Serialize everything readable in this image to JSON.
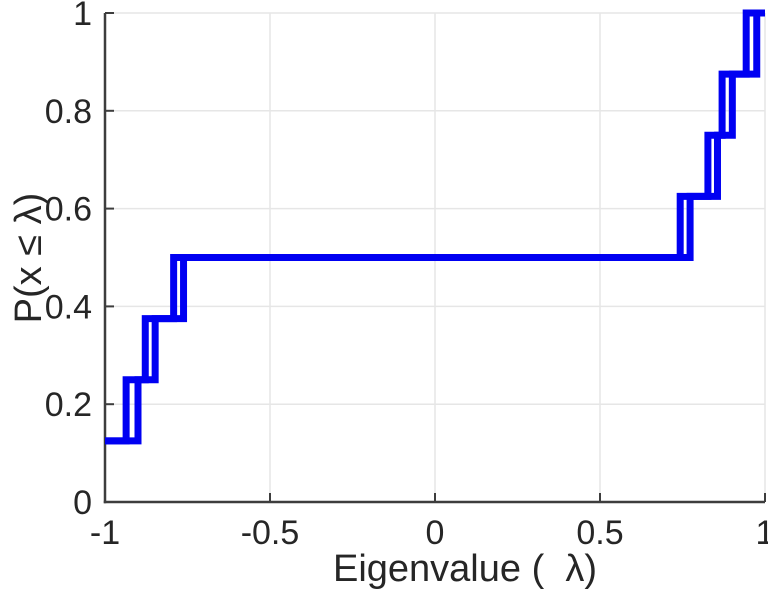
{
  "figure": {
    "background_color": "#ffffff"
  },
  "chart_data": {
    "type": "line",
    "subtype": "empirical-cdf-step-plot",
    "title": "",
    "xlabel": "Eigenvalue (  λ)",
    "ylabel": "P(x ≤ λ)",
    "xlim": [
      -1,
      1
    ],
    "ylim": [
      0,
      1
    ],
    "x_ticks": [
      -1,
      -0.5,
      0,
      0.5,
      1
    ],
    "x_tick_labels": [
      "-1",
      "-0.5",
      "0",
      "0.5",
      "1"
    ],
    "y_ticks": [
      0,
      0.2,
      0.4,
      0.6,
      0.8,
      1
    ],
    "y_tick_labels": [
      "0",
      "0.2",
      "0.4",
      "0.6",
      "0.8",
      "1"
    ],
    "grid": true,
    "legend": "none",
    "line_color": "#0000f2",
    "axis_color": "#3d3d3d",
    "grid_color": "#e6e6e6",
    "text_color": "#262626",
    "series": [
      {
        "name": "ecdf-curve-1",
        "x": [
          -1.0,
          -0.936,
          -0.878,
          -0.792,
          0.743,
          0.827,
          0.87,
          0.943
        ],
        "cumulative_probability": [
          0.125,
          0.25,
          0.375,
          0.5,
          0.625,
          0.75,
          0.875,
          1.0
        ]
      },
      {
        "name": "ecdf-curve-2",
        "x": [
          -1.0,
          -0.9,
          -0.848,
          -0.762,
          0.773,
          0.856,
          0.901,
          0.975
        ],
        "cumulative_probability": [
          0.125,
          0.25,
          0.375,
          0.5,
          0.625,
          0.75,
          0.875,
          1.0
        ]
      }
    ]
  }
}
